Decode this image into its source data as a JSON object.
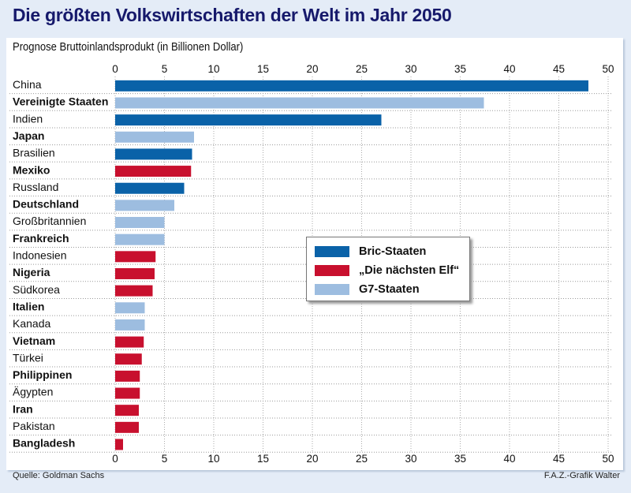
{
  "chart_data": {
    "type": "bar",
    "orientation": "horizontal",
    "title": "Die größten Volkswirtschaften der Welt im Jahr 2050",
    "subtitle": "Prognose Bruttoinlandsprodukt (in Billionen Dollar)",
    "xlim": [
      0,
      50
    ],
    "ticks": [
      0,
      5,
      10,
      15,
      20,
      25,
      30,
      35,
      40,
      45,
      50
    ],
    "grid": true,
    "legend_placement": "center-right",
    "groups": [
      {
        "key": "bric",
        "name": "Bric-Staaten",
        "color": "#0a62a8"
      },
      {
        "key": "n11",
        "name": "„Die nächsten Elf“",
        "color": "#c8102e"
      },
      {
        "key": "g7",
        "name": "G7-Staaten",
        "color": "#9dbde0"
      }
    ],
    "categories": [
      "China",
      "Vereinigte Staaten",
      "Indien",
      "Japan",
      "Brasilien",
      "Mexiko",
      "Russland",
      "Deutschland",
      "Großbritannien",
      "Frankreich",
      "Indonesien",
      "Nigeria",
      "Südkorea",
      "Italien",
      "Kanada",
      "Vietnam",
      "Türkei",
      "Philippinen",
      "Ägypten",
      "Iran",
      "Pakistan",
      "Bangladesh"
    ],
    "values": [
      48.0,
      37.4,
      27.0,
      8.0,
      7.8,
      7.7,
      7.0,
      6.0,
      5.0,
      5.0,
      4.1,
      4.0,
      3.8,
      3.0,
      3.0,
      2.9,
      2.7,
      2.5,
      2.5,
      2.4,
      2.4,
      0.8
    ],
    "group_of": [
      "bric",
      "g7",
      "bric",
      "g7",
      "bric",
      "n11",
      "bric",
      "g7",
      "g7",
      "g7",
      "n11",
      "n11",
      "n11",
      "g7",
      "g7",
      "n11",
      "n11",
      "n11",
      "n11",
      "n11",
      "n11",
      "n11"
    ]
  },
  "footer": {
    "source": "Quelle: Goldman Sachs",
    "credit": "F.A.Z.-Grafik Walter"
  }
}
